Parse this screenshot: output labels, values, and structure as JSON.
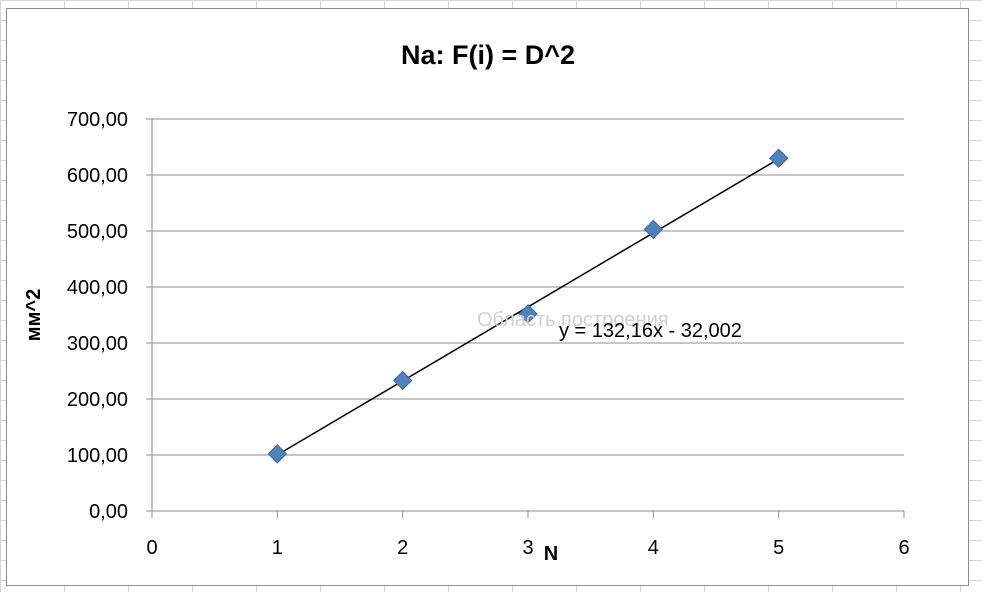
{
  "chart_data": {
    "type": "scatter",
    "title": "Na: F(i) = D^2",
    "xlabel": "N",
    "ylabel": "мм^2",
    "xlim": [
      0,
      6
    ],
    "ylim": [
      0,
      700
    ],
    "x_ticks": [
      "0",
      "1",
      "2",
      "3",
      "4",
      "5",
      "6"
    ],
    "y_ticks": [
      "0,00",
      "100,00",
      "200,00",
      "300,00",
      "400,00",
      "500,00",
      "600,00",
      "700,00"
    ],
    "grid": "horizontal",
    "series": [
      {
        "x": [
          1,
          2,
          3,
          4,
          5
        ],
        "y": [
          102,
          233,
          352,
          503,
          630
        ],
        "marker": "diamond",
        "color": "#4f81bd"
      }
    ],
    "trendline": {
      "type": "linear",
      "slope": 132.16,
      "intercept": -32.002,
      "x_range": [
        1,
        5
      ],
      "equation_label": "y = 132,16x - 32,002",
      "color": "#000000"
    },
    "overlay_text": "Область построения"
  }
}
